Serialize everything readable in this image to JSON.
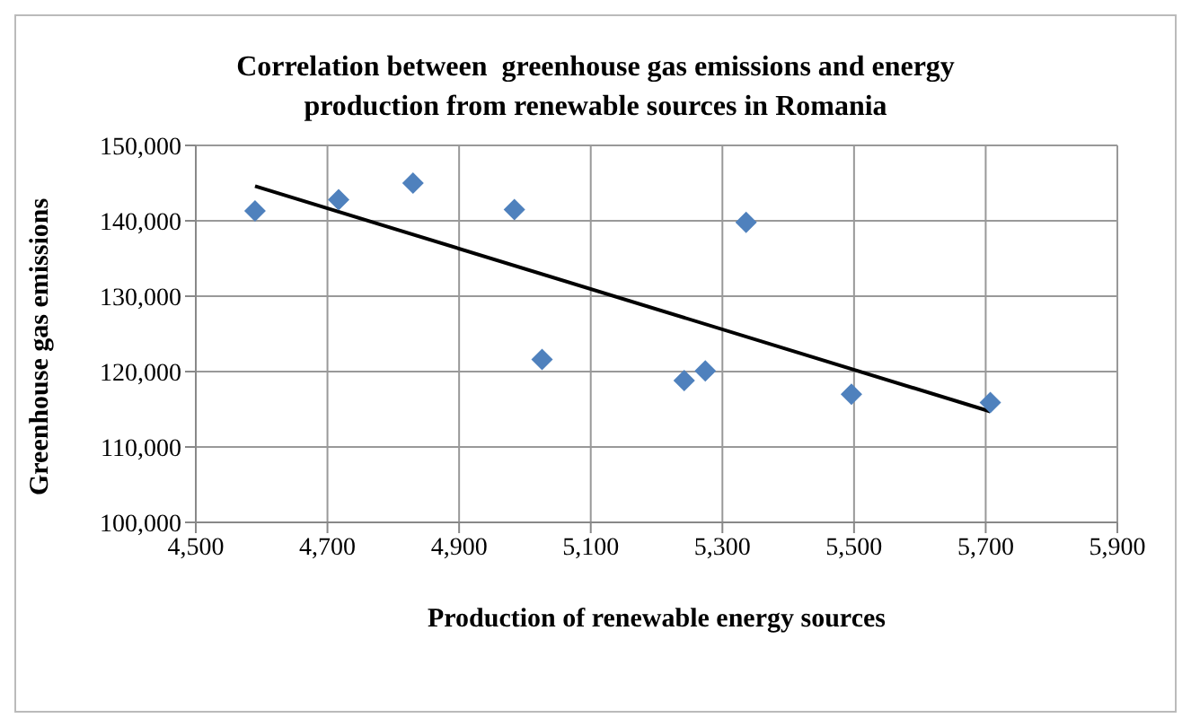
{
  "chart_data": {
    "type": "scatter",
    "title": "Correlation between  greenhouse gas emissions and energy production from renewable sources in Romania",
    "xlabel": "Production of renewable energy sources",
    "ylabel": "Greenhouse gas emissions",
    "xlim": [
      4500,
      5900
    ],
    "xticks": [
      {
        "value": 4500,
        "label": "4,500"
      },
      {
        "value": 4700,
        "label": "4,700"
      },
      {
        "value": 4900,
        "label": "4,900"
      },
      {
        "value": 5100,
        "label": "5,100"
      },
      {
        "value": 5300,
        "label": "5,300"
      },
      {
        "value": 5500,
        "label": "5,500"
      },
      {
        "value": 5700,
        "label": "5,700"
      },
      {
        "value": 5900,
        "label": "5,900"
      }
    ],
    "ylim": [
      100000,
      150000
    ],
    "yticks": [
      {
        "value": 100000,
        "label": "100,000"
      },
      {
        "value": 110000,
        "label": "110,000"
      },
      {
        "value": 120000,
        "label": "120,000"
      },
      {
        "value": 130000,
        "label": "130,000"
      },
      {
        "value": 140000,
        "label": "140,000"
      },
      {
        "value": 150000,
        "label": "150,000"
      }
    ],
    "grid": true,
    "legend": false,
    "marker": "diamond",
    "series": [
      {
        "color": "#4f81bd",
        "x": [
          4590,
          4717,
          4830,
          4984,
          5026,
          5242,
          5274,
          5336,
          5496,
          5707
        ],
        "values": [
          141300,
          142800,
          145000,
          141500,
          121600,
          118800,
          120100,
          139800,
          117000,
          115900
        ]
      },
      {
        "type": "line",
        "color": "#000000",
        "marker": "none",
        "x": [
          4590,
          5707
        ],
        "values": [
          144600,
          114700
        ]
      }
    ]
  }
}
